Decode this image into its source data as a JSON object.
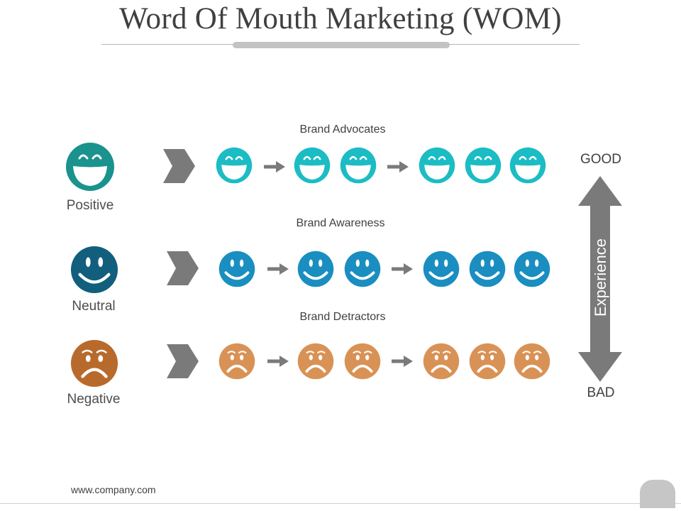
{
  "title": "Word Of Mouth Marketing (WOM)",
  "rows": [
    {
      "label": "Positive",
      "heading": "Brand Advocates",
      "mood": "happy-eyes-closed",
      "color": "#1cbcc4",
      "big_color": "#1a928e"
    },
    {
      "label": "Neutral",
      "heading": "Brand Awareness",
      "mood": "smile",
      "color": "#1a8ec0",
      "big_color": "#125e7d"
    },
    {
      "label": "Negative",
      "heading": "Brand Detractors",
      "mood": "frown",
      "color": "#d99255",
      "big_color": "#b86a2c"
    }
  ],
  "scale": {
    "top": "GOOD",
    "bottom": "BAD",
    "axis": "Experience"
  },
  "colors": {
    "gray": "#7a7a7a",
    "text": "#404040"
  },
  "footer": "www.company.com"
}
